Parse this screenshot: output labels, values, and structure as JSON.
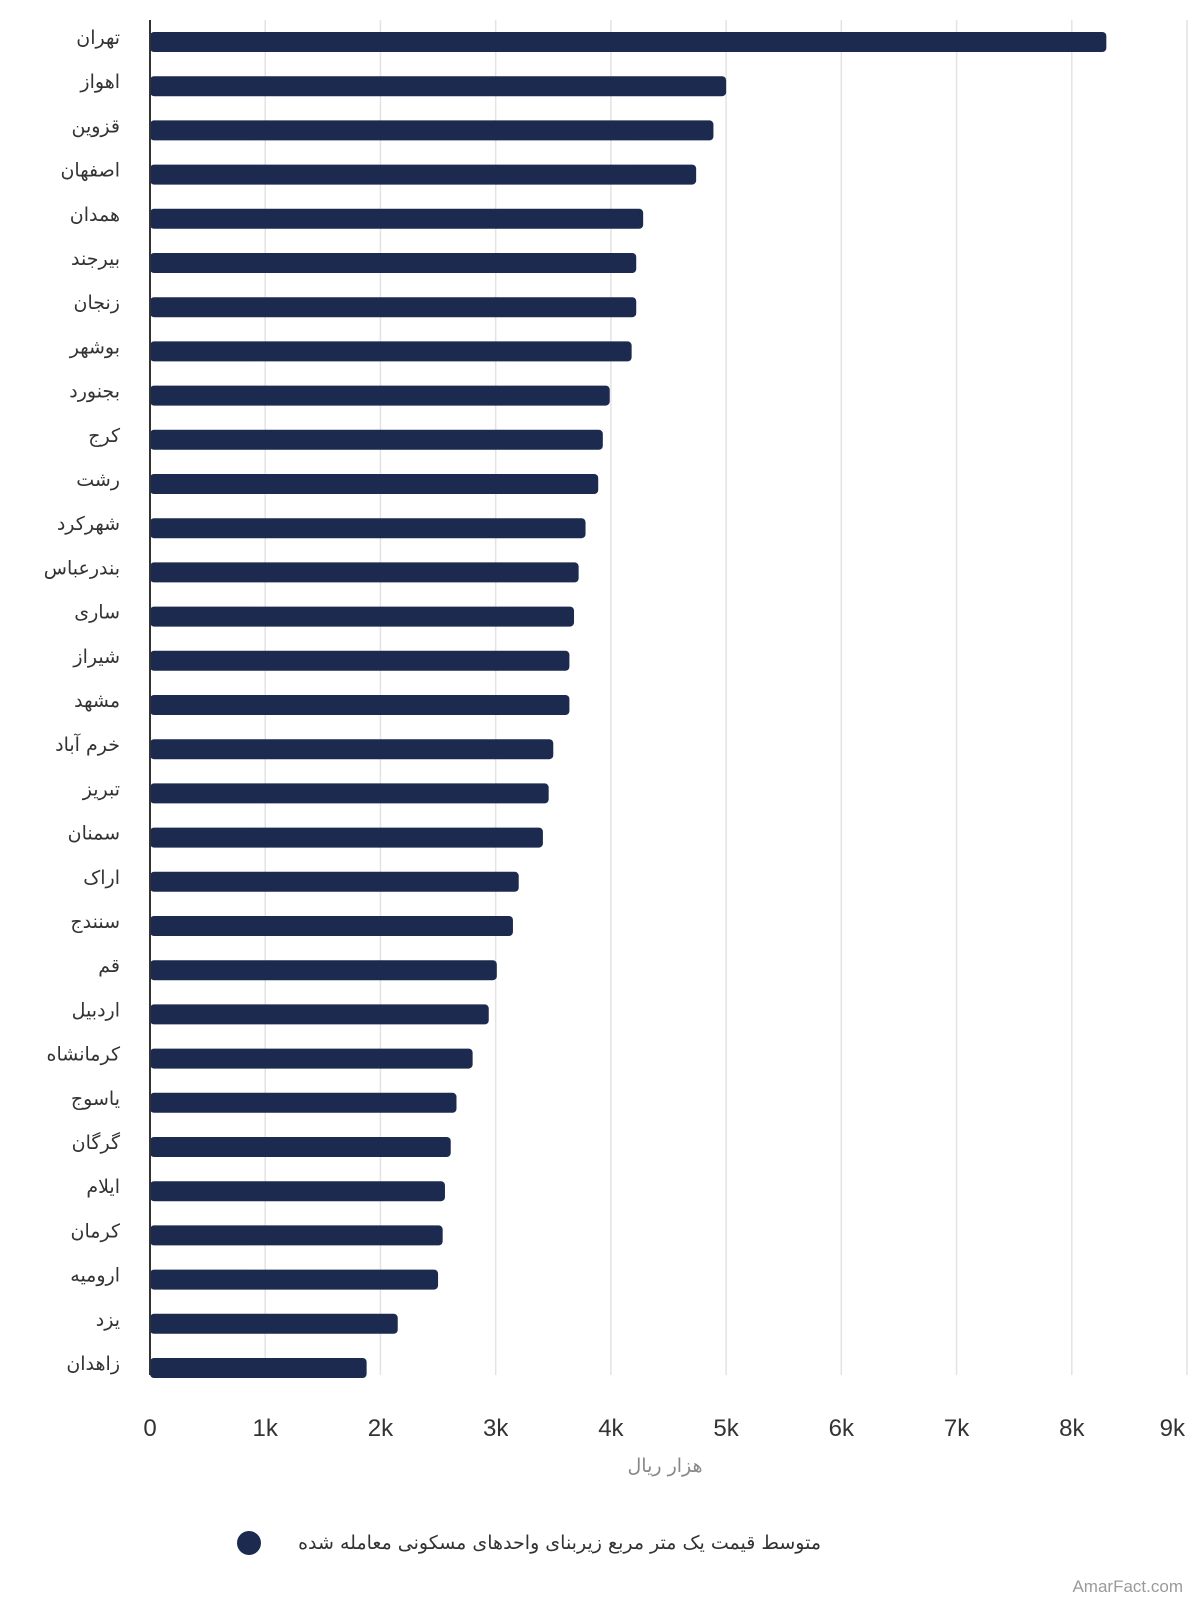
{
  "chart_data": {
    "type": "bar",
    "orientation": "horizontal",
    "categories": [
      "تهران",
      "اهواز",
      "قزوین",
      "اصفهان",
      "همدان",
      "بیرجند",
      "زنجان",
      "بوشهر",
      "بجنورد",
      "کرج",
      "رشت",
      "شهرکرد",
      "بندرعباس",
      "ساری",
      "شیراز",
      "مشهد",
      "خرم آباد",
      "تبریز",
      "سمنان",
      "اراک",
      "سنندج",
      "قم",
      "اردبیل",
      "کرمانشاه",
      "یاسوج",
      "گرگان",
      "ایلام",
      "کرمان",
      "ارومیه",
      "یزد",
      "زاهدان"
    ],
    "series": [
      {
        "name": "متوسط قیمت یک متر مربع زیربنای واحدهای مسکونی معامله شده",
        "color": "#1b2a4e",
        "values": [
          8300,
          5000,
          4890,
          4740,
          4280,
          4220,
          4220,
          4180,
          3990,
          3930,
          3890,
          3780,
          3720,
          3680,
          3640,
          3640,
          3500,
          3460,
          3410,
          3200,
          3150,
          3010,
          2940,
          2800,
          2660,
          2610,
          2560,
          2540,
          2500,
          2150,
          1880
        ]
      }
    ],
    "xlabel": "هزار ریال",
    "xlim": [
      0,
      9000
    ],
    "ticks": [
      "0",
      "1k",
      "2k",
      "3k",
      "4k",
      "5k",
      "6k",
      "7k",
      "8k",
      "9k"
    ],
    "grid": "vertical",
    "legend": "bottom"
  },
  "credit": "AmarFact.com"
}
